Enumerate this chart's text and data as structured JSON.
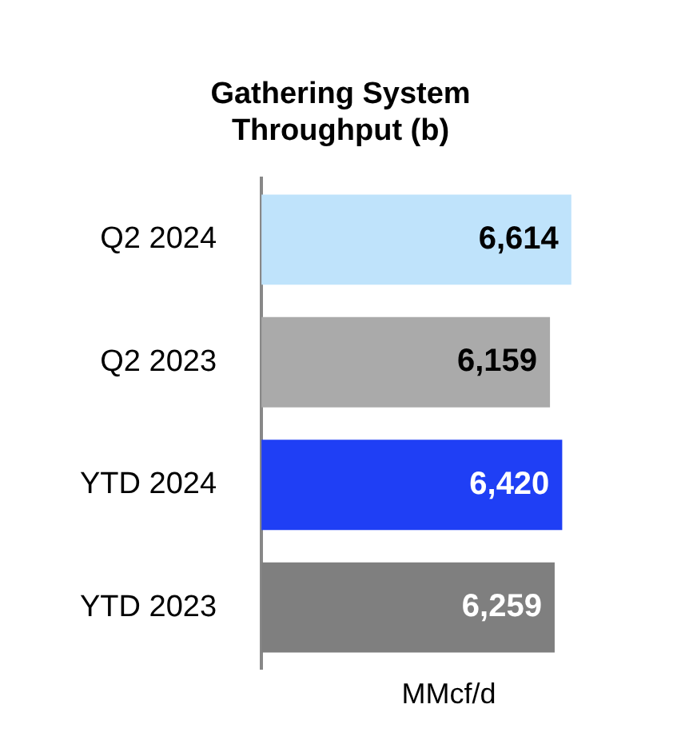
{
  "chart_data": {
    "type": "bar",
    "orientation": "horizontal",
    "title": "Gathering System\nThroughput (b)",
    "xlabel": "MMcf/d",
    "categories": [
      "Q2 2024",
      "Q2 2023",
      "YTD 2024",
      "YTD 2023"
    ],
    "values": [
      6614,
      6159,
      6420,
      6259
    ],
    "colors": [
      "#bfe3fb",
      "#aaaaaa",
      "#1f3ff5",
      "#7f7f7f"
    ],
    "value_labels": [
      "6,614",
      "6,159",
      "6,420",
      "6,259"
    ],
    "grid": false,
    "legend": false,
    "tick_labels": "y"
  }
}
